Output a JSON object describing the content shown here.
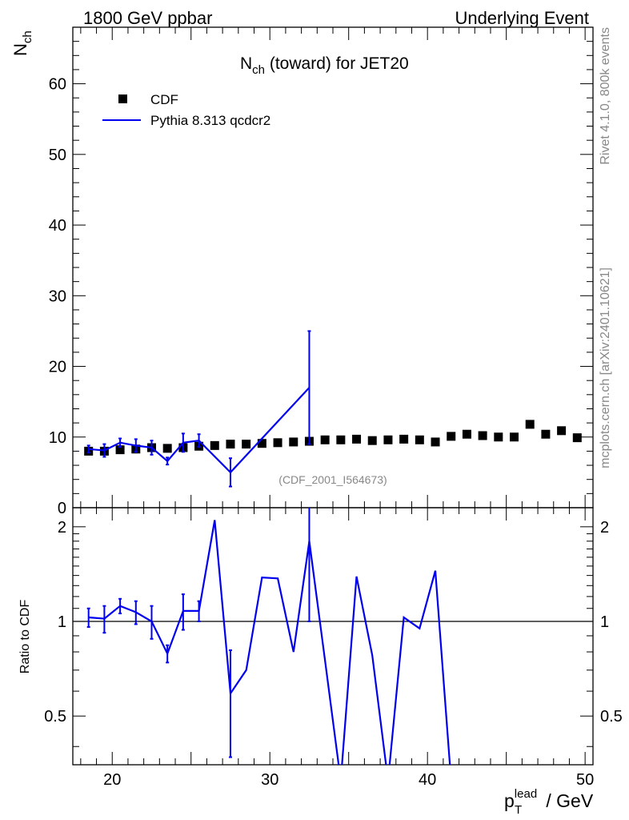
{
  "header": {
    "left_title": "1800 GeV ppbar",
    "right_title": "Underlying Event"
  },
  "side_labels": {
    "rivet": "Rivet 4.1.0,  800k events",
    "mcplots": "mcplots.cern.ch [arXiv:2401.10621]"
  },
  "colors": {
    "mc": "#0000ee",
    "data": "#000000",
    "watermark": "#888888"
  },
  "chart_data": [
    {
      "type": "scatter",
      "panel": "main",
      "title_main": "N",
      "title_sub": "ch",
      "title_rest": " (toward) for JET20",
      "ylabel_main": "N",
      "ylabel_sub": "ch",
      "xlim": [
        17.5,
        50.5
      ],
      "ylim": [
        0,
        68
      ],
      "yticks": [
        0,
        10,
        20,
        30,
        40,
        50,
        60
      ],
      "legend": {
        "position": "top-left",
        "data_label": "CDF",
        "mc_label": "Pythia 8.313 qcdcr2"
      },
      "watermark": "(CDF_2001_I564673)",
      "data_series": {
        "name": "CDF",
        "x": [
          18.5,
          19.5,
          20.5,
          21.5,
          22.5,
          23.5,
          24.5,
          25.5,
          26.5,
          27.5,
          28.5,
          29.5,
          30.5,
          31.5,
          32.5,
          33.5,
          34.5,
          35.5,
          36.5,
          37.5,
          38.5,
          39.5,
          40.5,
          41.5,
          42.5,
          43.5,
          44.5,
          45.5,
          46.5,
          47.5,
          48.5,
          49.5
        ],
        "y": [
          8.0,
          8.0,
          8.2,
          8.3,
          8.5,
          8.4,
          8.5,
          8.7,
          8.8,
          9.0,
          9.0,
          9.1,
          9.2,
          9.3,
          9.4,
          9.6,
          9.6,
          9.7,
          9.5,
          9.6,
          9.7,
          9.6,
          9.3,
          10.1,
          10.4,
          10.2,
          10.0,
          10.0,
          11.8,
          10.4,
          10.9,
          9.9
        ]
      },
      "mc_series": {
        "name": "Pythia 8.313 qcdcr2",
        "x": [
          18.5,
          19.5,
          20.5,
          21.5,
          22.5,
          23.5,
          24.5,
          25.5,
          27.5,
          32.5
        ],
        "y": [
          8.3,
          8.1,
          9.2,
          8.8,
          8.5,
          6.6,
          9.2,
          9.5,
          5.0,
          17.0
        ],
        "yerr": [
          0.5,
          0.9,
          0.6,
          0.9,
          1.0,
          0.5,
          1.3,
          0.9,
          2.0,
          8.0
        ]
      }
    },
    {
      "type": "line",
      "panel": "ratio",
      "ylabel": "Ratio to CDF",
      "xlabel_main": "p",
      "xlabel_sup": "lead",
      "xlabel_sub": "T",
      "xlabel_rest": " / GeV",
      "xlim": [
        17.5,
        50.5
      ],
      "ylim": [
        0.35,
        2.3
      ],
      "xticks": [
        20,
        30,
        40,
        50
      ],
      "yticks": [
        0.5,
        1,
        2
      ],
      "reference": 1,
      "series": [
        {
          "name": "Pythia 8.313 qcdcr2",
          "x": [
            18.5,
            19.5,
            20.5,
            21.5,
            22.5,
            23.5,
            24.5,
            25.5,
            26.5,
            27.5,
            28.5,
            29.5,
            30.5,
            31.5,
            32.5,
            33.5,
            34.5,
            35.5,
            36.5,
            37.5,
            38.5,
            39.5,
            40.5,
            41.5
          ],
          "y": [
            1.03,
            1.02,
            1.12,
            1.07,
            1.0,
            0.79,
            1.08,
            1.08,
            2.1,
            0.59,
            0.7,
            1.38,
            1.37,
            0.8,
            1.8,
            0.75,
            0,
            1.39,
            0.78,
            0,
            1.03,
            0.95,
            1.45,
            0
          ],
          "yerr": [
            0.07,
            0.1,
            0.06,
            0.09,
            0.12,
            0.05,
            0.14,
            0.08,
            0,
            0.22,
            0,
            0,
            0,
            0,
            0.8,
            0,
            0,
            0,
            0,
            0,
            0,
            0,
            0,
            0
          ]
        }
      ]
    }
  ]
}
